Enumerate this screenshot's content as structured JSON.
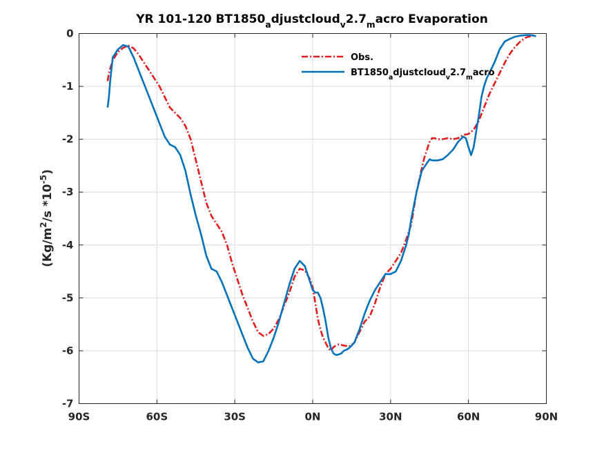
{
  "chart_data": {
    "type": "line",
    "title": {
      "parts": [
        {
          "t": "YR 101-120 BT1850"
        },
        {
          "t": "a",
          "sub": true
        },
        {
          "t": "djustcloud"
        },
        {
          "t": "v",
          "sub": true
        },
        {
          "t": "2.7"
        },
        {
          "t": "m",
          "sub": true
        },
        {
          "t": "acro Evaporation"
        }
      ]
    },
    "ylabel": {
      "parts": [
        {
          "t": "(Kg/m"
        },
        {
          "t": "2",
          "sup": true
        },
        {
          "t": "/s *10"
        },
        {
          "t": "-5",
          "sup": true
        },
        {
          "t": ")"
        }
      ]
    },
    "xlim": [
      -90,
      90
    ],
    "ylim": [
      -7,
      0
    ],
    "xticks": [
      {
        "v": -90,
        "label": "90S"
      },
      {
        "v": -60,
        "label": "60S"
      },
      {
        "v": -30,
        "label": "30S"
      },
      {
        "v": 0,
        "label": "0N"
      },
      {
        "v": 30,
        "label": "30N"
      },
      {
        "v": 60,
        "label": "60N"
      },
      {
        "v": 90,
        "label": "90N"
      }
    ],
    "yticks": [
      {
        "v": 0,
        "label": "0"
      },
      {
        "v": -1,
        "label": "-1"
      },
      {
        "v": -2,
        "label": "-2"
      },
      {
        "v": -3,
        "label": "-3"
      },
      {
        "v": -4,
        "label": "-4"
      },
      {
        "v": -5,
        "label": "-5"
      },
      {
        "v": -6,
        "label": "-6"
      },
      {
        "v": -7,
        "label": "-7"
      }
    ],
    "grid": true,
    "legend": {
      "location": "top-right-inside"
    },
    "series": [
      {
        "name": {
          "parts": [
            {
              "t": "Obs."
            }
          ]
        },
        "color": "#e41a1c",
        "style": "dash-dot",
        "x": [
          -79,
          -78.5,
          -77,
          -75,
          -73,
          -71,
          -69,
          -67,
          -65,
          -63,
          -61,
          -59,
          -57,
          -55,
          -53,
          -51,
          -49,
          -47,
          -45,
          -43,
          -41,
          -39,
          -37,
          -35,
          -33,
          -31,
          -29,
          -27,
          -25,
          -23,
          -21,
          -19,
          -17,
          -15,
          -13,
          -11,
          -9,
          -7,
          -5,
          -3,
          -1,
          0,
          1,
          2,
          3,
          4,
          5,
          6,
          7,
          8,
          9,
          10,
          12,
          14,
          16,
          18,
          20,
          22,
          24,
          26,
          28,
          30,
          32,
          34,
          36,
          38,
          40,
          42,
          43,
          44,
          45,
          46,
          47,
          48,
          50,
          52,
          54,
          56,
          58,
          60,
          62,
          64,
          66,
          68,
          70,
          72,
          74,
          76,
          78,
          80,
          82,
          84,
          86
        ],
        "y": [
          -0.9,
          -0.75,
          -0.5,
          -0.35,
          -0.27,
          -0.23,
          -0.28,
          -0.4,
          -0.55,
          -0.7,
          -0.85,
          -1.0,
          -1.2,
          -1.4,
          -1.5,
          -1.6,
          -1.75,
          -2.0,
          -2.4,
          -2.8,
          -3.2,
          -3.45,
          -3.6,
          -3.75,
          -4.0,
          -4.35,
          -4.65,
          -4.95,
          -5.2,
          -5.45,
          -5.65,
          -5.72,
          -5.68,
          -5.58,
          -5.4,
          -5.15,
          -4.9,
          -4.6,
          -4.45,
          -4.48,
          -4.65,
          -4.8,
          -5.1,
          -5.4,
          -5.6,
          -5.75,
          -5.85,
          -5.95,
          -6.0,
          -5.93,
          -5.9,
          -5.88,
          -5.9,
          -5.92,
          -5.85,
          -5.65,
          -5.45,
          -5.35,
          -5.1,
          -4.8,
          -4.55,
          -4.45,
          -4.3,
          -4.15,
          -3.9,
          -3.6,
          -3.0,
          -2.55,
          -2.35,
          -2.2,
          -2.05,
          -1.98,
          -1.98,
          -2.0,
          -2.0,
          -1.98,
          -2.0,
          -1.98,
          -1.92,
          -1.9,
          -1.82,
          -1.65,
          -1.4,
          -1.15,
          -0.95,
          -0.75,
          -0.55,
          -0.38,
          -0.25,
          -0.15,
          -0.08,
          -0.05,
          -0.04
        ]
      },
      {
        "name": {
          "parts": [
            {
              "t": "BT1850"
            },
            {
              "t": "a",
              "sub": true
            },
            {
              "t": "djustcloud"
            },
            {
              "t": "v",
              "sub": true
            },
            {
              "t": "2.7"
            },
            {
              "t": "m",
              "sub": true
            },
            {
              "t": "acro"
            }
          ]
        },
        "color": "#0072bd",
        "style": "solid",
        "x": [
          -79,
          -78.5,
          -78,
          -77,
          -75,
          -73,
          -71,
          -69,
          -67,
          -65,
          -63,
          -61,
          -59,
          -57,
          -55,
          -53,
          -51,
          -49,
          -47,
          -45,
          -43,
          -41,
          -39,
          -37,
          -35,
          -33,
          -31,
          -29,
          -27,
          -25,
          -23,
          -21,
          -19,
          -17,
          -15,
          -13,
          -11,
          -9,
          -7,
          -5,
          -3,
          -1,
          0,
          1,
          2,
          3,
          4,
          5,
          6,
          7,
          8,
          9,
          10,
          11,
          12,
          13,
          14,
          15,
          16,
          18,
          20,
          22,
          24,
          26,
          28,
          30,
          32,
          34,
          36,
          37,
          38,
          40,
          42,
          44,
          45,
          46,
          48,
          50,
          52,
          54,
          56,
          58,
          59,
          60,
          61,
          62,
          63,
          64,
          65,
          66,
          67,
          68,
          70,
          72,
          74,
          76,
          78,
          80,
          82,
          84,
          86
        ],
        "y": [
          -1.4,
          -1.2,
          -0.9,
          -0.45,
          -0.3,
          -0.22,
          -0.25,
          -0.45,
          -0.7,
          -0.95,
          -1.2,
          -1.45,
          -1.7,
          -1.95,
          -2.1,
          -2.15,
          -2.3,
          -2.6,
          -3.05,
          -3.45,
          -3.8,
          -4.2,
          -4.45,
          -4.5,
          -4.7,
          -4.95,
          -5.2,
          -5.45,
          -5.7,
          -5.95,
          -6.15,
          -6.22,
          -6.2,
          -6.0,
          -5.75,
          -5.45,
          -5.1,
          -4.75,
          -4.45,
          -4.3,
          -4.4,
          -4.7,
          -4.85,
          -4.9,
          -4.9,
          -5.0,
          -5.2,
          -5.45,
          -5.75,
          -5.95,
          -6.05,
          -6.08,
          -6.07,
          -6.05,
          -6.0,
          -5.98,
          -5.95,
          -5.9,
          -5.85,
          -5.6,
          -5.3,
          -5.05,
          -4.85,
          -4.7,
          -4.55,
          -4.55,
          -4.5,
          -4.3,
          -4.0,
          -3.8,
          -3.5,
          -3.0,
          -2.6,
          -2.45,
          -2.38,
          -2.4,
          -2.4,
          -2.38,
          -2.3,
          -2.2,
          -2.05,
          -1.95,
          -1.98,
          -2.15,
          -2.3,
          -2.15,
          -1.85,
          -1.55,
          -1.2,
          -1.0,
          -0.85,
          -0.75,
          -0.55,
          -0.3,
          -0.15,
          -0.1,
          -0.06,
          -0.04,
          -0.03,
          -0.03,
          -0.05
        ]
      }
    ]
  }
}
